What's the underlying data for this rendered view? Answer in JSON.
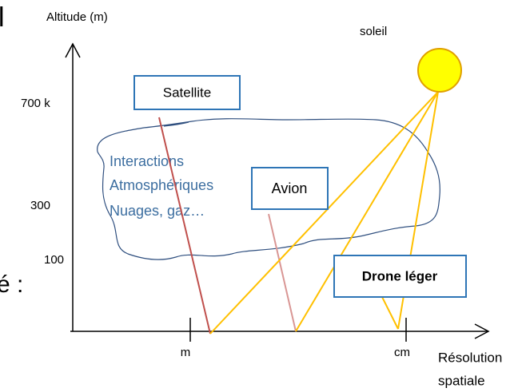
{
  "edge_text": {
    "top": "l",
    "left": "é :"
  },
  "y_axis": {
    "label": "Altitude (m)",
    "ticks": [
      "700 k",
      "300",
      "100"
    ]
  },
  "x_axis": {
    "label_lines": [
      "Résolution",
      "spatiale"
    ],
    "ticks": [
      "m",
      "cm"
    ]
  },
  "sun": {
    "label": "soleil"
  },
  "cloud": {
    "lines": [
      "Interactions",
      "Atmosphériques",
      "Nuages, gaz…"
    ]
  },
  "platforms": [
    "Satellite",
    "Avion",
    "Drone léger"
  ]
}
